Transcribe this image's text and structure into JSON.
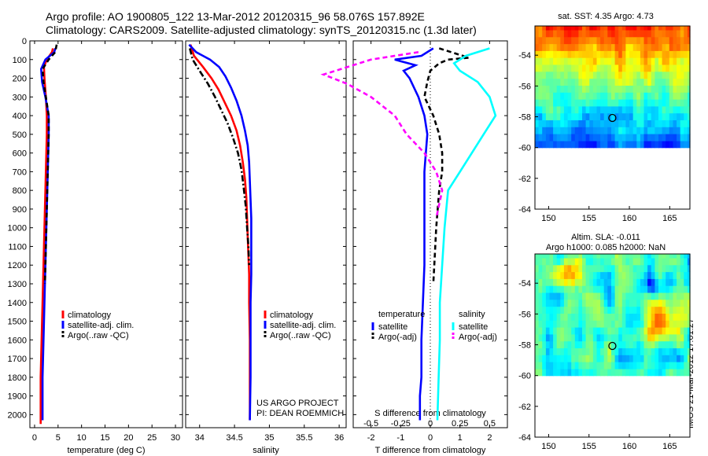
{
  "title_line1": "Argo profile: AO 1900805_122 13-Mar-2012 20120315_96 58.076S 157.892E",
  "title_line2": "Climatology: CARS2009. Satellite-adjusted climatology: synTS_20120315.nc (1.3d later)",
  "map1_title": "sat. SST: 4.35 Argo: 4.73",
  "map2_title_line1": "Altim. SLA: -0.011",
  "map2_title_line2": "Argo h1000: 0.085 h2000: NaN",
  "credit": "IMOS 21-Mar-2012 17:01:27",
  "colors": {
    "climatology": "#ff0000",
    "satellite": "#0000ff",
    "argo": "#000000",
    "sal_satellite": "#00ffff",
    "sal_argo": "#ff00ff"
  },
  "chart_data": [
    {
      "type": "line",
      "xlabel": "temperature (deg C)",
      "ylabel": "",
      "xlim": [
        -1,
        31.5
      ],
      "ylim": [
        2070,
        0
      ],
      "xticks": [
        0,
        5,
        10,
        15,
        20,
        25,
        30
      ],
      "yticks": [
        0,
        100,
        200,
        300,
        400,
        500,
        600,
        700,
        800,
        900,
        1000,
        1100,
        1200,
        1300,
        1400,
        1500,
        1600,
        1700,
        1800,
        1900,
        2000
      ],
      "legend": [
        "climatology",
        "satellite-adj. clim.",
        "Argo(..raw -QC)"
      ],
      "series": [
        {
          "name": "climatology",
          "color": "#ff0000",
          "style": "solid",
          "x": [
            3.9,
            3.7,
            2.6,
            2.0,
            2.1,
            2.4,
            2.6,
            2.6,
            2.5,
            2.4,
            2.3,
            2.2,
            2.1,
            2.0,
            1.9,
            1.8,
            1.7,
            1.6,
            1.5,
            1.4,
            1.3,
            1.3
          ],
          "y": [
            40,
            60,
            100,
            140,
            200,
            300,
            400,
            500,
            600,
            700,
            800,
            900,
            1000,
            1100,
            1200,
            1300,
            1400,
            1500,
            1600,
            1700,
            1800,
            2050
          ]
        },
        {
          "name": "satellite-adj. clim.",
          "color": "#0000ff",
          "style": "solid",
          "x": [
            4.4,
            4.2,
            2.3,
            1.4,
            1.6,
            2.3,
            3.0,
            3.0,
            2.9,
            2.8,
            2.7,
            2.6,
            2.5,
            2.4,
            2.3,
            2.2,
            2.1,
            2.0,
            1.9,
            1.8,
            1.7,
            1.7
          ],
          "y": [
            40,
            60,
            100,
            150,
            220,
            300,
            400,
            500,
            600,
            700,
            800,
            900,
            1000,
            1100,
            1200,
            1300,
            1400,
            1500,
            1600,
            1700,
            1800,
            2030
          ]
        },
        {
          "name": "Argo(..raw -QC)",
          "color": "#000000",
          "style": "dashed",
          "x": [
            4.7,
            4.4,
            3.0,
            1.7,
            1.9,
            2.4,
            3.0,
            3.0,
            2.9,
            2.8,
            2.7,
            2.6,
            2.5,
            2.4,
            2.3,
            2.2
          ],
          "y": [
            20,
            60,
            100,
            150,
            220,
            300,
            400,
            500,
            600,
            700,
            800,
            900,
            1000,
            1100,
            1200,
            1300
          ]
        }
      ]
    },
    {
      "type": "line",
      "xlabel": "salinity",
      "ylabel": "",
      "xlim": [
        33.8,
        36.1
      ],
      "ylim": [
        2070,
        0
      ],
      "xticks": [
        34,
        34.5,
        35,
        35.5,
        36
      ],
      "legend": [
        "climatology",
        "satellite-adj. clim.",
        "Argo(..raw -QC)"
      ],
      "annotations": [
        "US ARGO PROJECT",
        "PI: DEAN ROEMMICH"
      ],
      "series": [
        {
          "name": "climatology",
          "color": "#ff0000",
          "style": "solid",
          "x": [
            33.87,
            33.92,
            34.05,
            34.17,
            34.27,
            34.36,
            34.45,
            34.53,
            34.58,
            34.62,
            34.65,
            34.67,
            34.68,
            34.69,
            34.7,
            34.71,
            34.71,
            34.72,
            34.72,
            34.72
          ],
          "y": [
            20,
            80,
            140,
            200,
            260,
            330,
            400,
            480,
            560,
            650,
            740,
            840,
            950,
            1050,
            1150,
            1250,
            1400,
            1600,
            1800,
            2030
          ]
        },
        {
          "name": "satellite-adj. clim.",
          "color": "#0000ff",
          "style": "solid",
          "x": [
            33.85,
            33.95,
            34.15,
            34.28,
            34.37,
            34.45,
            34.53,
            34.6,
            34.65,
            34.69,
            34.71,
            34.72,
            34.73,
            34.74,
            34.74,
            34.74,
            34.73,
            34.73,
            34.73,
            34.72
          ],
          "y": [
            20,
            60,
            100,
            140,
            190,
            250,
            320,
            400,
            480,
            560,
            650,
            750,
            850,
            950,
            1100,
            1250,
            1400,
            1600,
            1800,
            2030
          ]
        },
        {
          "name": "Argo(..raw -QC)",
          "color": "#000000",
          "style": "dashdot",
          "x": [
            33.86,
            33.9,
            34.0,
            34.12,
            34.22,
            34.31,
            34.4,
            34.48,
            34.55,
            34.6,
            34.63,
            34.66,
            34.68,
            34.7,
            34.71
          ],
          "y": [
            40,
            100,
            160,
            230,
            300,
            370,
            440,
            520,
            600,
            690,
            780,
            880,
            1000,
            1100,
            1200
          ]
        }
      ]
    },
    {
      "type": "line",
      "xlabel": "T difference from climatology",
      "xlabel2": "S difference from climatology",
      "xlim": [
        -2.6,
        2.6
      ],
      "ylim": [
        2070,
        0
      ],
      "xticks": [
        -2,
        -1,
        0,
        1,
        2
      ],
      "xticks2": [
        -0.5,
        -0.25,
        0,
        0.25,
        0.5
      ],
      "legend_headers": [
        "temperature",
        "salinity"
      ],
      "legend": [
        "satellite",
        "Argo(-adj)",
        "satellite",
        "Argo(-adj)"
      ],
      "series": [
        {
          "name": "satellite",
          "group": "temperature",
          "color": "#0000ff",
          "style": "solid",
          "x": [
            0.1,
            -0.3,
            -1.2,
            -0.5,
            -0.9,
            -0.7,
            -0.4,
            -0.2,
            -0.1,
            -0.15,
            -0.2,
            -0.2,
            -0.2,
            -0.2,
            -0.25,
            -0.3,
            -0.3,
            -0.3,
            -0.35,
            -0.35
          ],
          "y": [
            40,
            80,
            100,
            130,
            160,
            200,
            300,
            400,
            500,
            600,
            700,
            800,
            1000,
            1200,
            1400,
            1600,
            1700,
            1800,
            1900,
            2030
          ]
        },
        {
          "name": "Argo(-adj)",
          "group": "temperature",
          "color": "#000000",
          "style": "dashed",
          "x": [
            0.3,
            1.3,
            0.6,
            0.3,
            0.0,
            -0.1,
            -0.2,
            0.1,
            0.3,
            0.4,
            0.4,
            0.3,
            0.2,
            0.15,
            0.1
          ],
          "y": [
            40,
            90,
            100,
            120,
            160,
            220,
            300,
            400,
            500,
            600,
            700,
            800,
            1000,
            1150,
            1300
          ]
        },
        {
          "name": "satellite",
          "group": "salinity",
          "color": "#00ffff",
          "style": "solid",
          "x": [
            0.5,
            0.3,
            0.2,
            0.25,
            0.4,
            0.5,
            0.55,
            0.45,
            0.35,
            0.25,
            0.15,
            0.12,
            0.1,
            0.08,
            0.08,
            0.07,
            0.06
          ],
          "y": [
            40,
            80,
            120,
            160,
            220,
            300,
            400,
            500,
            600,
            700,
            800,
            1000,
            1200,
            1400,
            1600,
            1800,
            2030
          ]
        },
        {
          "name": "Argo(-adj)",
          "group": "salinity",
          "color": "#ff00ff",
          "style": "dashed",
          "x": [
            -0.1,
            -0.5,
            -0.7,
            -0.9,
            -0.7,
            -0.5,
            -0.3,
            -0.2,
            -0.05,
            0.05,
            0.1,
            0.05
          ],
          "y": [
            60,
            100,
            140,
            180,
            230,
            300,
            400,
            500,
            600,
            700,
            800,
            950
          ]
        }
      ]
    },
    {
      "type": "heatmap",
      "title": "sat. SST: 4.35 Argo: 4.73",
      "xlim": [
        148.3,
        167.5
      ],
      "ylim": [
        -64,
        -52.1
      ],
      "xticks": [
        150,
        155,
        160,
        165
      ],
      "yticks": [
        -54,
        -56,
        -58,
        -60,
        -62,
        -64
      ],
      "data_ylim": [
        -60,
        -52.1
      ],
      "marker": {
        "lon": 157.892,
        "lat": -58.076
      }
    },
    {
      "type": "heatmap",
      "title": "Altim. SLA: -0.011 / Argo h1000: 0.085 h2000: NaN",
      "xlim": [
        148.3,
        167.5
      ],
      "ylim": [
        -64,
        -52.1
      ],
      "xticks": [
        150,
        155,
        160,
        165
      ],
      "yticks": [
        -54,
        -56,
        -58,
        -60,
        -62,
        -64
      ],
      "data_ylim": [
        -60,
        -52.1
      ],
      "marker": {
        "lon": 157.892,
        "lat": -58.076
      }
    }
  ]
}
